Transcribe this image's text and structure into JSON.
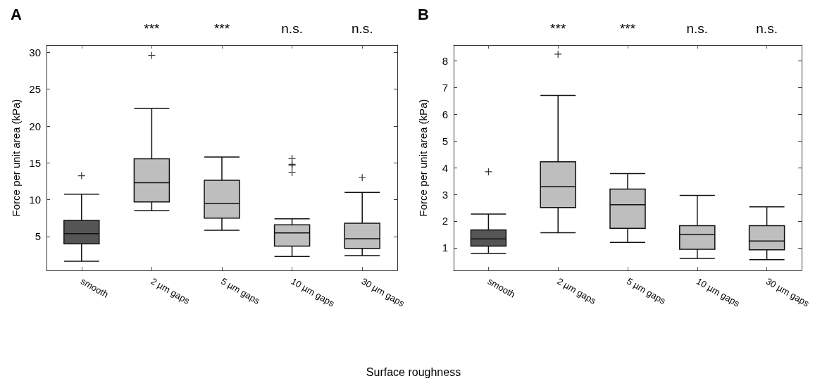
{
  "chart_data": [
    {
      "type": "box",
      "title": "A",
      "xlabel": "Surface roughness",
      "ylabel": "Force per unit area (kPa)",
      "categories": [
        "smooth",
        "2 µm gaps",
        "5 µm gaps",
        "10 µm gaps",
        "30 µm gaps"
      ],
      "colors": [
        "#555555",
        "#bebebe",
        "#bebebe",
        "#bebebe",
        "#bebebe"
      ],
      "boxes": [
        {
          "low": 1.65,
          "q1": 4.0,
          "median": 5.4,
          "q3": 7.2,
          "high": 10.75,
          "outliers": [
            13.25
          ]
        },
        {
          "low": 8.5,
          "q1": 9.7,
          "median": 12.3,
          "q3": 15.55,
          "high": 22.4,
          "outliers": [
            29.6
          ]
        },
        {
          "low": 5.85,
          "q1": 7.5,
          "median": 9.5,
          "q3": 12.65,
          "high": 15.8
        },
        {
          "low": 2.3,
          "q1": 3.7,
          "median": 5.5,
          "q3": 6.6,
          "high": 7.4,
          "outliers": [
            15.6,
            14.8,
            14.6,
            13.7
          ]
        },
        {
          "low": 2.4,
          "q1": 3.4,
          "median": 4.7,
          "q3": 6.8,
          "high": 11.0,
          "outliers": [
            13.0
          ]
        }
      ],
      "ylim": [
        0.4,
        31
      ],
      "yticks": [
        5,
        10,
        15,
        20,
        25,
        30
      ],
      "marker": "cross",
      "annotations": [
        {
          "text": "***",
          "x": "2 µm gaps"
        },
        {
          "text": "***",
          "x": "5 µm gaps"
        },
        {
          "text": "n.s.",
          "x": "10 µm gaps"
        },
        {
          "text": "n.s.",
          "x": "30 µm gaps"
        }
      ]
    },
    {
      "type": "box",
      "title": "B",
      "ylabel": "Force per unit area (kPa)",
      "categories": [
        "smooth",
        "2 µm gaps",
        "5 µm gaps",
        "10 µm gaps",
        "30 µm gaps"
      ],
      "colors": [
        "#555555",
        "#bebebe",
        "#bebebe",
        "#bebebe",
        "#bebebe"
      ],
      "boxes": [
        {
          "low": 0.79,
          "q1": 1.06,
          "median": 1.33,
          "q3": 1.67,
          "high": 2.26,
          "outliers": [
            3.85
          ]
        },
        {
          "low": 1.56,
          "q1": 2.51,
          "median": 3.29,
          "q3": 4.22,
          "high": 6.71,
          "outliers": [
            8.26
          ]
        },
        {
          "low": 1.2,
          "q1": 1.73,
          "median": 2.61,
          "q3": 3.2,
          "high": 3.78
        },
        {
          "low": 0.6,
          "q1": 0.94,
          "median": 1.49,
          "q3": 1.83,
          "high": 2.96
        },
        {
          "low": 0.55,
          "q1": 0.92,
          "median": 1.25,
          "q3": 1.83,
          "high": 2.53
        }
      ],
      "ylim": [
        0.15,
        8.6
      ],
      "yticks": [
        1,
        2,
        3,
        4,
        5,
        6,
        7,
        8
      ],
      "marker": "cross",
      "annotations": [
        {
          "text": "***",
          "x": "2 µm gaps"
        },
        {
          "text": "***",
          "x": "5 µm gaps"
        },
        {
          "text": "n.s.",
          "x": "10 µm gaps"
        },
        {
          "text": "n.s.",
          "x": "30 µm gaps"
        }
      ]
    }
  ]
}
